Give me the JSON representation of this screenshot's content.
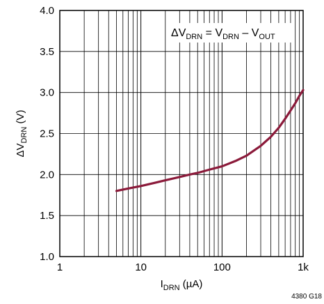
{
  "chart_data": {
    "type": "line",
    "x_scale": "log",
    "xlim": [
      1,
      1000
    ],
    "ylim": [
      1.0,
      4.0
    ],
    "grid": true,
    "x_tick_labels": [
      "1",
      "10",
      "100",
      "1k"
    ],
    "y_tick_labels": [
      "1.0",
      "1.5",
      "2.0",
      "2.5",
      "3.0",
      "3.5",
      "4.0"
    ],
    "xlabel": {
      "main": "I",
      "sub": "DRN",
      "unit": " (µA)"
    },
    "ylabel": {
      "main": "ΔV",
      "sub": "DRN",
      "unit": " (V)"
    },
    "annotation": {
      "a1": "ΔV",
      "a1_sub": "DRN",
      "a2": " = V",
      "a2_sub": "DRN",
      "a3": " – V",
      "a3_sub": "OUT"
    },
    "figure_id": "4380 G18",
    "series": [
      {
        "color": "#8b1a3a",
        "x": [
          5,
          7,
          10,
          15,
          20,
          30,
          40,
          50,
          70,
          100,
          150,
          200,
          300,
          400,
          500,
          600,
          700,
          800,
          900,
          1000
        ],
        "y": [
          1.8,
          1.83,
          1.86,
          1.9,
          1.93,
          1.97,
          2.0,
          2.02,
          2.06,
          2.1,
          2.17,
          2.23,
          2.35,
          2.46,
          2.57,
          2.68,
          2.78,
          2.87,
          2.96,
          3.03
        ]
      }
    ]
  }
}
